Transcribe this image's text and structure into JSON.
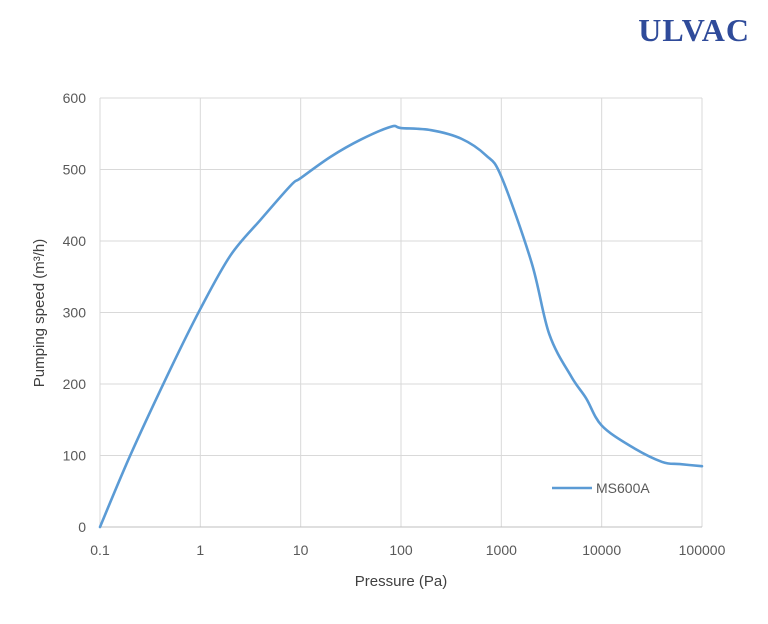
{
  "brand": {
    "logo_text": "ULVAC"
  },
  "chart_data": {
    "type": "line",
    "title": "",
    "xlabel": "Pressure (Pa)",
    "ylabel": "Pumping speed (m³/h)",
    "x_scale": "log",
    "xlim": [
      0.1,
      100000
    ],
    "ylim": [
      0,
      600
    ],
    "x_ticks": [
      "0.1",
      "1",
      "10",
      "100",
      "1000",
      "10000",
      "100000"
    ],
    "y_ticks": [
      "0",
      "100",
      "200",
      "300",
      "400",
      "500",
      "600"
    ],
    "grid": true,
    "legend_position": "bottom-right",
    "series": [
      {
        "name": "MS600A",
        "color": "#5b9bd5",
        "x": [
          0.1,
          0.2,
          0.5,
          1,
          2,
          4,
          8,
          10,
          20,
          40,
          80,
          100,
          200,
          400,
          700,
          1000,
          2000,
          3000,
          5000,
          7000,
          10000,
          20000,
          40000,
          60000,
          100000
        ],
        "y": [
          0,
          100,
          220,
          305,
          380,
          430,
          478,
          488,
          518,
          542,
          560,
          558,
          555,
          543,
          520,
          490,
          370,
          270,
          210,
          180,
          142,
          112,
          91,
          88,
          85
        ]
      }
    ]
  }
}
